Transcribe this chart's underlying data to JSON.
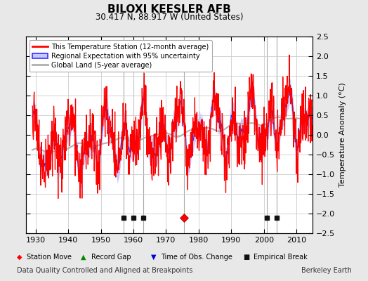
{
  "title": "BILOXI KEESLER AFB",
  "subtitle": "30.417 N, 88.917 W (United States)",
  "ylabel": "Temperature Anomaly (°C)",
  "xlabel_note": "Data Quality Controlled and Aligned at Breakpoints",
  "source_note": "Berkeley Earth",
  "ylim": [
    -2.5,
    2.5
  ],
  "xlim": [
    1927,
    2015
  ],
  "yticks": [
    -2.5,
    -2,
    -1.5,
    -1,
    -0.5,
    0,
    0.5,
    1,
    1.5,
    2,
    2.5
  ],
  "xticks": [
    1930,
    1940,
    1950,
    1960,
    1970,
    1980,
    1990,
    2000,
    2010
  ],
  "background_color": "#e8e8e8",
  "plot_bg_color": "#ffffff",
  "grid_color": "#cccccc",
  "station_color": "#ff0000",
  "regional_color": "#3333ff",
  "regional_fill_color": "#c8c8ff",
  "global_color": "#b0b0b0",
  "station_move_x": [
    1975.5
  ],
  "empirical_break_x": [
    1957,
    1960,
    1963,
    2001,
    2004
  ],
  "vline_x": [
    1957,
    1960,
    1963,
    1975.5,
    2001,
    2004
  ],
  "marker_y": -2.1,
  "legend_entries": [
    "This Temperature Station (12-month average)",
    "Regional Expectation with 95% uncertainty",
    "Global Land (5-year average)"
  ]
}
